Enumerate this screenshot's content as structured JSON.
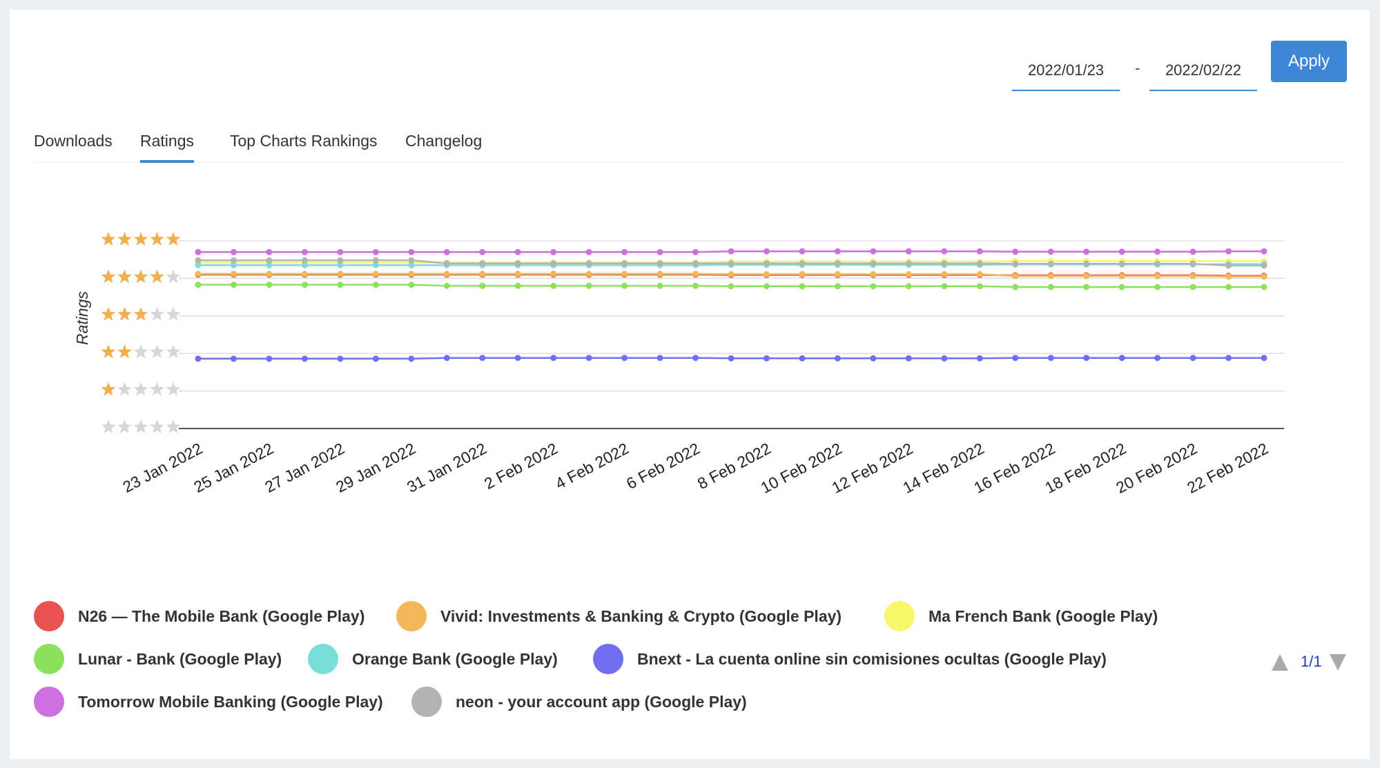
{
  "date_range": {
    "start": "2022/01/23",
    "separator": "-",
    "end": "2022/02/22",
    "apply_label": "Apply"
  },
  "tabs": [
    "Downloads",
    "Ratings",
    "Top Charts Rankings",
    "Changelog"
  ],
  "active_tab": "Ratings",
  "pager": {
    "text": "1/1"
  },
  "chart_data": {
    "type": "line",
    "title": "",
    "ylabel": "Ratings",
    "xlabel": "",
    "ylim": [
      0,
      5
    ],
    "y_ticks": [
      0,
      1,
      2,
      3,
      4,
      5
    ],
    "y_tick_labels": [
      "★★★★★ (0 filled)",
      "1 star",
      "2 stars",
      "3 stars",
      "4 stars",
      "5 stars"
    ],
    "x_tick_labels": [
      "23 Jan 2022",
      "25 Jan 2022",
      "27 Jan 2022",
      "29 Jan 2022",
      "31 Jan 2022",
      "2 Feb 2022",
      "4 Feb 2022",
      "6 Feb 2022",
      "8 Feb 2022",
      "10 Feb 2022",
      "12 Feb 2022",
      "14 Feb 2022",
      "16 Feb 2022",
      "18 Feb 2022",
      "20 Feb 2022",
      "22 Feb 2022"
    ],
    "x": [
      "23 Jan 2022",
      "24 Jan 2022",
      "25 Jan 2022",
      "26 Jan 2022",
      "27 Jan 2022",
      "28 Jan 2022",
      "29 Jan 2022",
      "30 Jan 2022",
      "31 Jan 2022",
      "1 Feb 2022",
      "2 Feb 2022",
      "3 Feb 2022",
      "4 Feb 2022",
      "5 Feb 2022",
      "6 Feb 2022",
      "7 Feb 2022",
      "8 Feb 2022",
      "9 Feb 2022",
      "10 Feb 2022",
      "11 Feb 2022",
      "12 Feb 2022",
      "13 Feb 2022",
      "14 Feb 2022",
      "15 Feb 2022",
      "16 Feb 2022",
      "17 Feb 2022",
      "18 Feb 2022",
      "19 Feb 2022",
      "20 Feb 2022",
      "21 Feb 2022",
      "22 Feb 2022"
    ],
    "grid": true,
    "legend_position": "bottom",
    "series": [
      {
        "name": "N26 — The Mobile Bank (Google Play)",
        "color": "#e8534f",
        "values": [
          4.1,
          4.1,
          4.1,
          4.1,
          4.1,
          4.1,
          4.1,
          4.1,
          4.1,
          4.1,
          4.1,
          4.1,
          4.1,
          4.1,
          4.1,
          4.09,
          4.09,
          4.09,
          4.09,
          4.09,
          4.09,
          4.09,
          4.09,
          4.08,
          4.08,
          4.08,
          4.08,
          4.08,
          4.08,
          4.07,
          4.07
        ]
      },
      {
        "name": "Vivid: Investments & Banking & Crypto (Google Play)",
        "color": "#f2b756",
        "values": [
          4.12,
          4.12,
          4.12,
          4.12,
          4.12,
          4.12,
          4.12,
          4.12,
          4.12,
          4.12,
          4.12,
          4.12,
          4.12,
          4.12,
          4.12,
          4.11,
          4.11,
          4.11,
          4.11,
          4.11,
          4.11,
          4.11,
          4.11,
          4.06,
          4.06,
          4.06,
          4.06,
          4.06,
          4.06,
          4.05,
          4.05
        ]
      },
      {
        "name": "Ma French Bank (Google Play)",
        "color": "#f7f76a",
        "values": [
          4.42,
          4.42,
          4.42,
          4.42,
          4.42,
          4.42,
          4.42,
          4.42,
          4.42,
          4.42,
          4.42,
          4.42,
          4.42,
          4.42,
          4.42,
          4.45,
          4.45,
          4.45,
          4.45,
          4.45,
          4.45,
          4.45,
          4.45,
          4.46,
          4.46,
          4.46,
          4.46,
          4.46,
          4.46,
          4.46,
          4.46
        ]
      },
      {
        "name": "Lunar - Bank (Google Play)",
        "color": "#8de15e",
        "values": [
          3.83,
          3.83,
          3.83,
          3.83,
          3.83,
          3.83,
          3.83,
          3.8,
          3.8,
          3.8,
          3.8,
          3.8,
          3.8,
          3.8,
          3.8,
          3.79,
          3.79,
          3.79,
          3.79,
          3.79,
          3.79,
          3.79,
          3.79,
          3.77,
          3.77,
          3.77,
          3.77,
          3.77,
          3.77,
          3.77,
          3.77
        ]
      },
      {
        "name": "Orange Bank (Google Play)",
        "color": "#79ddd8",
        "values": [
          4.35,
          4.35,
          4.35,
          4.35,
          4.35,
          4.35,
          4.35,
          4.35,
          4.35,
          4.35,
          4.35,
          4.35,
          4.35,
          4.35,
          4.35,
          4.36,
          4.36,
          4.36,
          4.36,
          4.36,
          4.36,
          4.36,
          4.36,
          4.37,
          4.37,
          4.37,
          4.37,
          4.37,
          4.37,
          4.38,
          4.38
        ]
      },
      {
        "name": "Bnext - La cuenta online sin comisiones ocultas (Google Play)",
        "color": "#6f6ff0",
        "values": [
          1.86,
          1.86,
          1.86,
          1.86,
          1.86,
          1.86,
          1.86,
          1.88,
          1.88,
          1.88,
          1.88,
          1.88,
          1.88,
          1.88,
          1.88,
          1.87,
          1.87,
          1.87,
          1.87,
          1.87,
          1.87,
          1.87,
          1.87,
          1.88,
          1.88,
          1.88,
          1.88,
          1.88,
          1.88,
          1.88,
          1.88
        ]
      },
      {
        "name": "Tomorrow Mobile Banking (Google Play)",
        "color": "#cc6fe0",
        "values": [
          4.7,
          4.7,
          4.7,
          4.7,
          4.7,
          4.7,
          4.7,
          4.7,
          4.7,
          4.7,
          4.7,
          4.7,
          4.7,
          4.7,
          4.7,
          4.72,
          4.72,
          4.72,
          4.72,
          4.72,
          4.72,
          4.72,
          4.72,
          4.71,
          4.71,
          4.71,
          4.71,
          4.71,
          4.71,
          4.72,
          4.72
        ]
      },
      {
        "name": "neon - your account app (Google Play)",
        "color": "#b3b3b3",
        "values": [
          4.48,
          4.48,
          4.48,
          4.48,
          4.48,
          4.48,
          4.48,
          4.4,
          4.4,
          4.4,
          4.4,
          4.4,
          4.4,
          4.4,
          4.4,
          4.4,
          4.4,
          4.4,
          4.4,
          4.4,
          4.4,
          4.4,
          4.4,
          4.39,
          4.39,
          4.39,
          4.39,
          4.39,
          4.39,
          4.34,
          4.34
        ]
      }
    ]
  }
}
